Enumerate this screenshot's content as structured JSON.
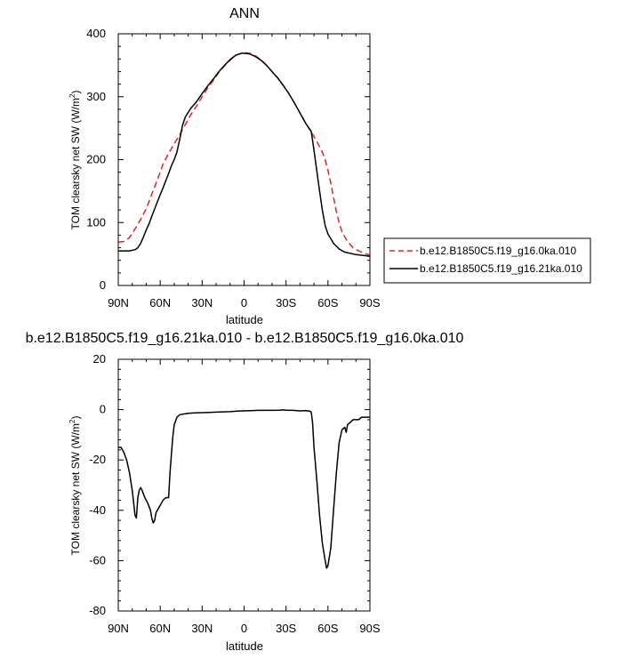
{
  "chart_data": [
    {
      "type": "line",
      "title": "ANN",
      "xlabel": "latitude",
      "ylabel": "TOM clearsky net SW (W/m",
      "ylabel_sup": "2",
      "ylabel_end": ")",
      "xlim": [
        90,
        -90
      ],
      "ylim": [
        0,
        400
      ],
      "xticks": [
        {
          "value": 90,
          "label": "90N"
        },
        {
          "value": 60,
          "label": "60N"
        },
        {
          "value": 30,
          "label": "30N"
        },
        {
          "value": 0,
          "label": "0"
        },
        {
          "value": -30,
          "label": "30S"
        },
        {
          "value": -60,
          "label": "60S"
        },
        {
          "value": -90,
          "label": "90S"
        }
      ],
      "yticks": [
        {
          "value": 0,
          "label": "0"
        },
        {
          "value": 100,
          "label": "100"
        },
        {
          "value": 200,
          "label": "200"
        },
        {
          "value": 300,
          "label": "300"
        },
        {
          "value": 400,
          "label": "400"
        }
      ],
      "legend_position": "right",
      "series": [
        {
          "name": "b.e12.B1850C5.f19_g16.0ka.010",
          "color": "#e8201e",
          "dash": true,
          "points": [
            [
              90,
              69
            ],
            [
              86,
              70
            ],
            [
              82,
              76
            ],
            [
              78,
              90
            ],
            [
              74,
              105
            ],
            [
              70,
              122
            ],
            [
              66,
              145
            ],
            [
              62,
              168
            ],
            [
              60,
              180
            ],
            [
              58,
              193
            ],
            [
              54,
              210
            ],
            [
              50,
              225
            ],
            [
              46,
              240
            ],
            [
              42,
              256
            ],
            [
              38,
              272
            ],
            [
              34,
              285
            ],
            [
              30,
              300
            ],
            [
              26,
              314
            ],
            [
              22,
              326
            ],
            [
              18,
              339
            ],
            [
              14,
              349
            ],
            [
              10,
              358
            ],
            [
              6,
              366
            ],
            [
              2,
              369
            ],
            [
              0,
              370
            ],
            [
              -4,
              369
            ],
            [
              -8,
              365
            ],
            [
              -12,
              359
            ],
            [
              -16,
              350
            ],
            [
              -20,
              340
            ],
            [
              -24,
              330
            ],
            [
              -28,
              318
            ],
            [
              -32,
              305
            ],
            [
              -36,
              290
            ],
            [
              -40,
              274
            ],
            [
              -44,
              258
            ],
            [
              -48,
              244
            ],
            [
              -52,
              229
            ],
            [
              -56,
              212
            ],
            [
              -58,
              200
            ],
            [
              -60,
              183
            ],
            [
              -62,
              163
            ],
            [
              -64,
              140
            ],
            [
              -66,
              117
            ],
            [
              -68,
              100
            ],
            [
              -70,
              85
            ],
            [
              -74,
              70
            ],
            [
              -78,
              60
            ],
            [
              -82,
              55
            ],
            [
              -86,
              51
            ],
            [
              -90,
              48
            ]
          ]
        },
        {
          "name": "b.e12.B1850C5.f19_g16.21ka.010",
          "color": "#000000",
          "dash": false,
          "points": [
            [
              90,
              55
            ],
            [
              86,
              55
            ],
            [
              82,
              55
            ],
            [
              78,
              57
            ],
            [
              76,
              60
            ],
            [
              74,
              67
            ],
            [
              72,
              77
            ],
            [
              70,
              88
            ],
            [
              68,
              98
            ],
            [
              66,
              110
            ],
            [
              62,
              133
            ],
            [
              58,
              155
            ],
            [
              54,
              178
            ],
            [
              52,
              190
            ],
            [
              50,
              200
            ],
            [
              48,
              212
            ],
            [
              46,
              233
            ],
            [
              44,
              255
            ],
            [
              42,
              268
            ],
            [
              38,
              282
            ],
            [
              34,
              292
            ],
            [
              30,
              305
            ],
            [
              26,
              317
            ],
            [
              22,
              328
            ],
            [
              18,
              340
            ],
            [
              14,
              350
            ],
            [
              10,
              359
            ],
            [
              6,
              366
            ],
            [
              2,
              369
            ],
            [
              0,
              369
            ],
            [
              -4,
              368
            ],
            [
              -8,
              364
            ],
            [
              -12,
              358
            ],
            [
              -16,
              350
            ],
            [
              -20,
              340
            ],
            [
              -24,
              330
            ],
            [
              -28,
              318
            ],
            [
              -32,
              305
            ],
            [
              -36,
              290
            ],
            [
              -40,
              274
            ],
            [
              -44,
              258
            ],
            [
              -48,
              245
            ],
            [
              -50,
              215
            ],
            [
              -52,
              182
            ],
            [
              -54,
              150
            ],
            [
              -56,
              120
            ],
            [
              -58,
              95
            ],
            [
              -60,
              82
            ],
            [
              -64,
              67
            ],
            [
              -68,
              58
            ],
            [
              -72,
              53
            ],
            [
              -76,
              51
            ],
            [
              -80,
              49
            ],
            [
              -84,
              48
            ],
            [
              -88,
              47
            ],
            [
              -90,
              46
            ]
          ]
        }
      ]
    },
    {
      "type": "line",
      "title": "b.e12.B1850C5.f19_g16.21ka.010 - b.e12.B1850C5.f19_g16.0ka.010",
      "xlabel": "latitude",
      "ylabel": "TOM clearsky net SW (W/m",
      "ylabel_sup": "2",
      "ylabel_end": ")",
      "xlim": [
        90,
        -90
      ],
      "ylim": [
        -80,
        20
      ],
      "xticks": [
        {
          "value": 90,
          "label": "90N"
        },
        {
          "value": 60,
          "label": "60N"
        },
        {
          "value": 30,
          "label": "30N"
        },
        {
          "value": 0,
          "label": "0"
        },
        {
          "value": -30,
          "label": "30S"
        },
        {
          "value": -60,
          "label": "60S"
        },
        {
          "value": -90,
          "label": "90S"
        }
      ],
      "yticks": [
        {
          "value": -80,
          "label": "-80"
        },
        {
          "value": -60,
          "label": "-60"
        },
        {
          "value": -40,
          "label": "-40"
        },
        {
          "value": -20,
          "label": "-20"
        },
        {
          "value": 0,
          "label": "0"
        },
        {
          "value": 20,
          "label": "20"
        }
      ],
      "series": [
        {
          "color": "#000000",
          "dash": false,
          "points": [
            [
              90,
              -15
            ],
            [
              88,
              -15
            ],
            [
              86,
              -17
            ],
            [
              84,
              -20
            ],
            [
              82,
              -25
            ],
            [
              80,
              -32
            ],
            [
              78,
              -42
            ],
            [
              77,
              -43
            ],
            [
              76,
              -35
            ],
            [
              75,
              -32
            ],
            [
              74,
              -31
            ],
            [
              73,
              -32
            ],
            [
              71,
              -35
            ],
            [
              69,
              -37
            ],
            [
              67,
              -40
            ],
            [
              66,
              -43
            ],
            [
              65,
              -45
            ],
            [
              64,
              -44
            ],
            [
              63,
              -41
            ],
            [
              62,
              -40
            ],
            [
              60,
              -38
            ],
            [
              58,
              -36
            ],
            [
              56,
              -35
            ],
            [
              54,
              -35
            ],
            [
              53,
              -25
            ],
            [
              52,
              -18
            ],
            [
              51,
              -11
            ],
            [
              50,
              -6
            ],
            [
              48,
              -3
            ],
            [
              46,
              -2
            ],
            [
              44,
              -1.8
            ],
            [
              40,
              -1.5
            ],
            [
              35,
              -1.3
            ],
            [
              30,
              -1.2
            ],
            [
              25,
              -1.1
            ],
            [
              20,
              -1
            ],
            [
              15,
              -0.9
            ],
            [
              10,
              -0.8
            ],
            [
              5,
              -0.6
            ],
            [
              0,
              -0.5
            ],
            [
              -5,
              -0.4
            ],
            [
              -10,
              -0.3
            ],
            [
              -15,
              -0.3
            ],
            [
              -20,
              -0.3
            ],
            [
              -25,
              -0.2
            ],
            [
              -28,
              -0.1
            ],
            [
              -30,
              -0.2
            ],
            [
              -35,
              -0.3
            ],
            [
              -40,
              -0.5
            ],
            [
              -44,
              -0.4
            ],
            [
              -47,
              -0.6
            ],
            [
              -48,
              -1
            ],
            [
              -49,
              -5
            ],
            [
              -50,
              -15
            ],
            [
              -52,
              -28
            ],
            [
              -54,
              -42
            ],
            [
              -56,
              -53
            ],
            [
              -58,
              -60
            ],
            [
              -59,
              -63
            ],
            [
              -60,
              -62
            ],
            [
              -62,
              -55
            ],
            [
              -64,
              -40
            ],
            [
              -66,
              -25
            ],
            [
              -68,
              -13
            ],
            [
              -70,
              -8
            ],
            [
              -72,
              -7
            ],
            [
              -73,
              -9
            ],
            [
              -74,
              -6
            ],
            [
              -76,
              -5
            ],
            [
              -78,
              -4
            ],
            [
              -80,
              -4
            ],
            [
              -82,
              -4
            ],
            [
              -84,
              -3
            ],
            [
              -86,
              -3
            ],
            [
              -88,
              -3
            ],
            [
              -90,
              -3
            ]
          ]
        }
      ]
    }
  ]
}
